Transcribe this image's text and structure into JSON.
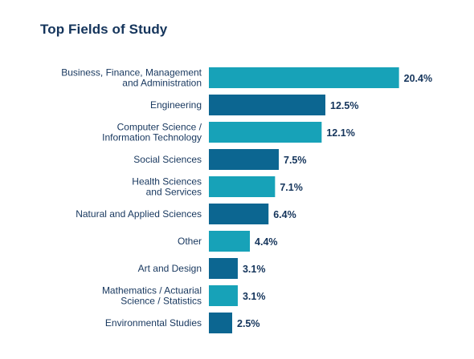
{
  "title": "Top Fields of Study",
  "colors": {
    "bar_light": "#17a2b8",
    "bar_dark": "#0c6691",
    "text": "#14345b"
  },
  "chart_data": {
    "type": "bar",
    "orientation": "horizontal",
    "title": "Top Fields of Study",
    "categories": [
      [
        "Business, Finance, Management",
        "and Administration"
      ],
      [
        "Engineering"
      ],
      [
        "Computer Science /",
        "Information Technology"
      ],
      [
        "Social Sciences"
      ],
      [
        "Health Sciences",
        "and Services"
      ],
      [
        "Natural and Applied Sciences"
      ],
      [
        "Other"
      ],
      [
        "Art and Design"
      ],
      [
        "Mathematics / Actuarial",
        "Science / Statistics"
      ],
      [
        "Environmental Studies"
      ]
    ],
    "values": [
      20.4,
      12.5,
      12.1,
      7.5,
      7.1,
      6.4,
      4.4,
      3.1,
      3.1,
      2.5
    ],
    "value_labels": [
      "20.4%",
      "12.5%",
      "12.1%",
      "7.5%",
      "7.1%",
      "6.4%",
      "4.4%",
      "3.1%",
      "3.1%",
      "2.5%"
    ],
    "bar_shades": [
      "light",
      "dark",
      "light",
      "dark",
      "light",
      "dark",
      "light",
      "dark",
      "light",
      "dark"
    ],
    "unit": "%",
    "xlabel": "",
    "ylabel": "",
    "grid": false,
    "legend": "none"
  }
}
